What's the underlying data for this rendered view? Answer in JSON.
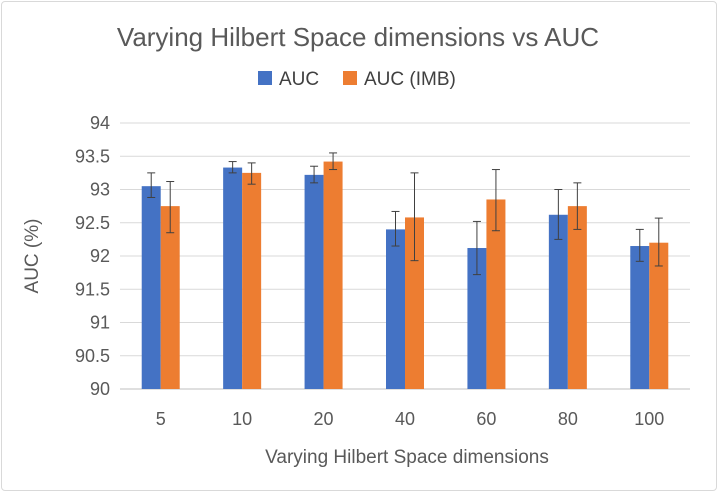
{
  "chart_data": {
    "type": "bar",
    "title": "Varying Hilbert Space dimensions vs AUC",
    "xlabel": "Varying Hilbert Space dimensions",
    "ylabel": "AUC (%)",
    "categories": [
      "5",
      "10",
      "20",
      "40",
      "60",
      "80",
      "100"
    ],
    "ylim": [
      90,
      94
    ],
    "yticks": [
      90,
      90.5,
      91,
      91.5,
      92,
      92.5,
      93,
      93.5,
      94
    ],
    "ytick_labels": [
      "90",
      "90.5",
      "91",
      "91.5",
      "92",
      "92.5",
      "93",
      "93.5",
      "94"
    ],
    "grid": true,
    "legend_position": "top",
    "series": [
      {
        "name": "AUC",
        "color": "#4472c4",
        "values": [
          93.05,
          93.33,
          93.22,
          92.4,
          92.12,
          92.62,
          92.15
        ],
        "error_low": [
          92.88,
          93.25,
          93.1,
          92.15,
          91.72,
          92.25,
          91.92
        ],
        "error_high": [
          93.25,
          93.42,
          93.35,
          92.67,
          92.52,
          93.0,
          92.4
        ]
      },
      {
        "name": "AUC (IMB)",
        "color": "#ed7d31",
        "values": [
          92.75,
          93.25,
          93.42,
          92.58,
          92.85,
          92.75,
          92.2
        ],
        "error_low": [
          92.35,
          93.08,
          93.3,
          91.93,
          92.38,
          92.4,
          91.85
        ],
        "error_high": [
          93.12,
          93.4,
          93.55,
          93.25,
          93.3,
          93.1,
          92.57
        ]
      }
    ]
  }
}
